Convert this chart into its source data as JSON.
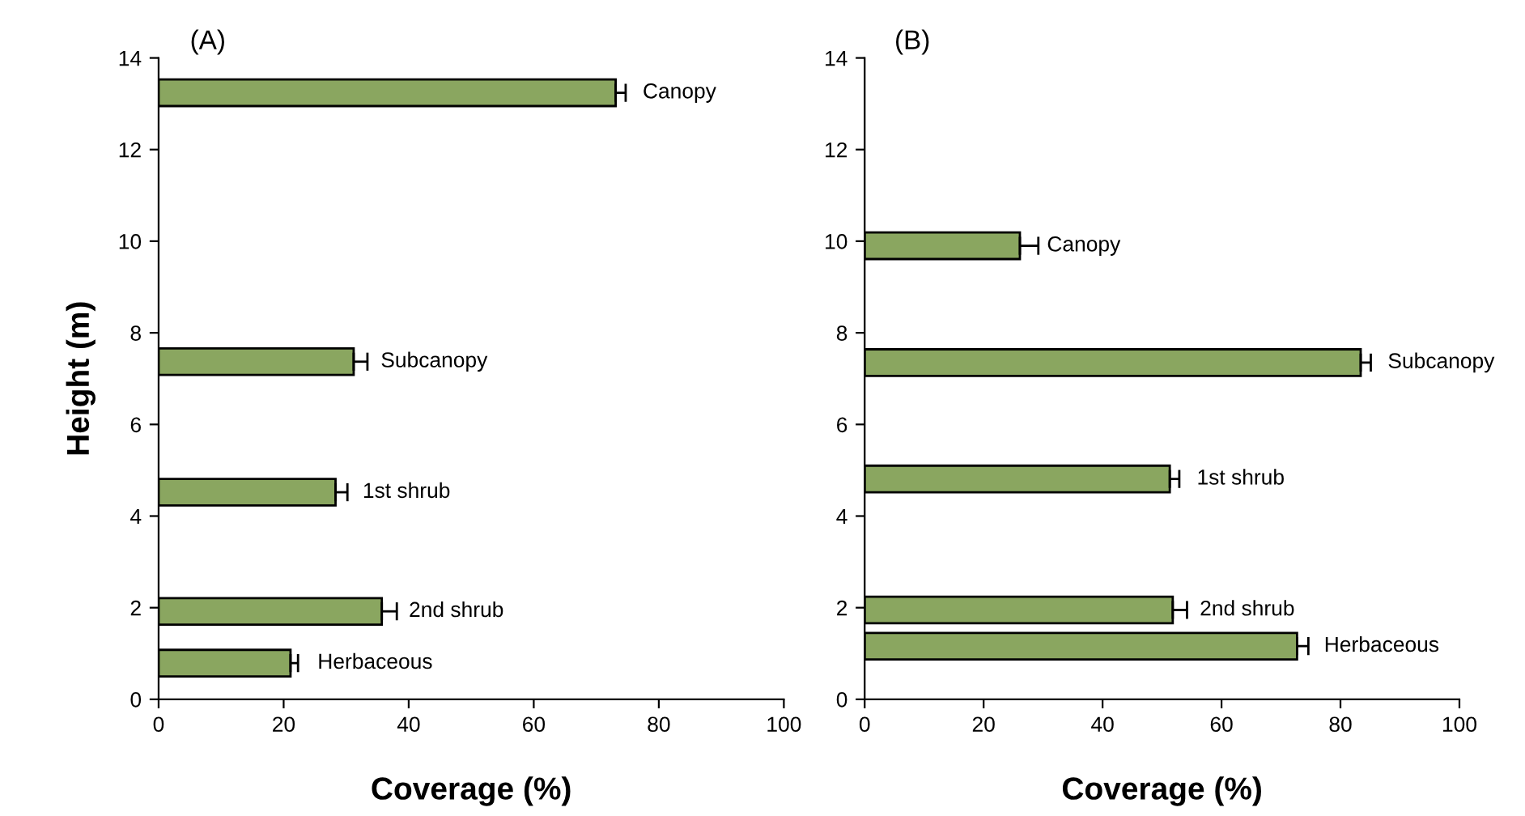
{
  "chart_data": [
    {
      "type": "bar",
      "orientation": "horizontal",
      "title": "(A)",
      "xlabel": "Coverage (%)",
      "ylabel": "Height (m)",
      "x": [
        13.24,
        7.37,
        4.52,
        1.92,
        0.79
      ],
      "values": [
        73.1,
        31.2,
        28.3,
        35.7,
        21.1
      ],
      "errors": [
        [
          73.1,
          74.7
        ],
        [
          31.2,
          33.4
        ],
        [
          28.3,
          30.2
        ],
        [
          35.7,
          38.1
        ],
        [
          21.1,
          22.3
        ]
      ],
      "color": "#8aa660",
      "xlim": [
        0,
        100
      ],
      "xticks": [
        0,
        20,
        40,
        60,
        80,
        100
      ],
      "ylim": [
        0,
        14
      ],
      "yticks": [
        0,
        2,
        4,
        6,
        8,
        10,
        12,
        14
      ],
      "grid": false,
      "annotations": [
        {
          "text": "Canopy",
          "x": 73.1,
          "y": 13.24
        },
        {
          "text": "Subcanopy",
          "x": 31.2,
          "y": 7.37
        },
        {
          "text": "1st shrub",
          "x": 28.3,
          "y": 4.52
        },
        {
          "text": "2nd shrub",
          "x": 35.7,
          "y": 1.92
        },
        {
          "text": "Herbaceous",
          "x": 21.1,
          "y": 0.79
        }
      ]
    },
    {
      "type": "bar",
      "orientation": "horizontal",
      "title": "(B)",
      "xlabel": "Coverage (%)",
      "x": [
        9.9,
        7.35,
        4.81,
        1.95,
        1.16
      ],
      "values": [
        26.1,
        83.4,
        51.3,
        51.8,
        72.7
      ],
      "errors": [
        [
          26.1,
          29.2
        ],
        [
          83.4,
          85.1
        ],
        [
          51.3,
          52.9
        ],
        [
          51.8,
          54.2
        ],
        [
          72.7,
          74.6
        ]
      ],
      "color": "#8aa660",
      "xlim": [
        0,
        100
      ],
      "xticks": [
        0,
        20,
        40,
        60,
        80,
        100
      ],
      "ylim": [
        0,
        14
      ],
      "yticks": [
        0,
        2,
        4,
        6,
        8,
        10,
        12,
        14
      ],
      "grid": false,
      "annotations": [
        {
          "text": "Canopy",
          "x": 26.1,
          "y": 9.9
        },
        {
          "text": "Subcanopy",
          "x": 83.4,
          "y": 7.35
        },
        {
          "text": "1st shrub",
          "x": 51.3,
          "y": 4.81
        },
        {
          "text": "2nd shrub",
          "x": 51.8,
          "y": 1.95
        },
        {
          "text": "Herbaceous",
          "x": 72.7,
          "y": 1.16
        }
      ]
    }
  ]
}
